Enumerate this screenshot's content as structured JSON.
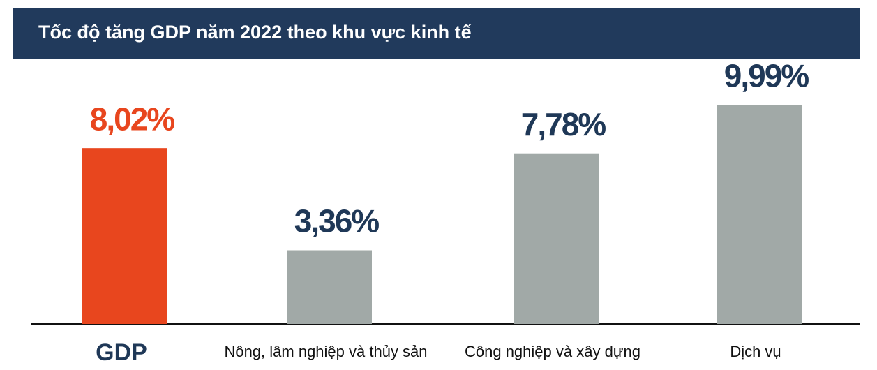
{
  "chart_data": {
    "type": "bar",
    "title": "Tốc độ tăng GDP năm 2022 theo khu vực kinh tế",
    "categories": [
      "GDP",
      "Nông, lâm nghiệp và thủy sản",
      "Công nghiệp và xây dựng",
      "Dịch vụ"
    ],
    "values": [
      8.02,
      3.36,
      7.78,
      9.99
    ],
    "value_labels": [
      "8,02%",
      "3,36%",
      "7,78%",
      "9,99%"
    ],
    "colors": [
      "#e8461e",
      "#a1a9a7",
      "#a1a9a7",
      "#a1a9a7"
    ],
    "label_colors": [
      "#e8461e",
      "#1f3857",
      "#1f3857",
      "#1f3857"
    ]
  }
}
